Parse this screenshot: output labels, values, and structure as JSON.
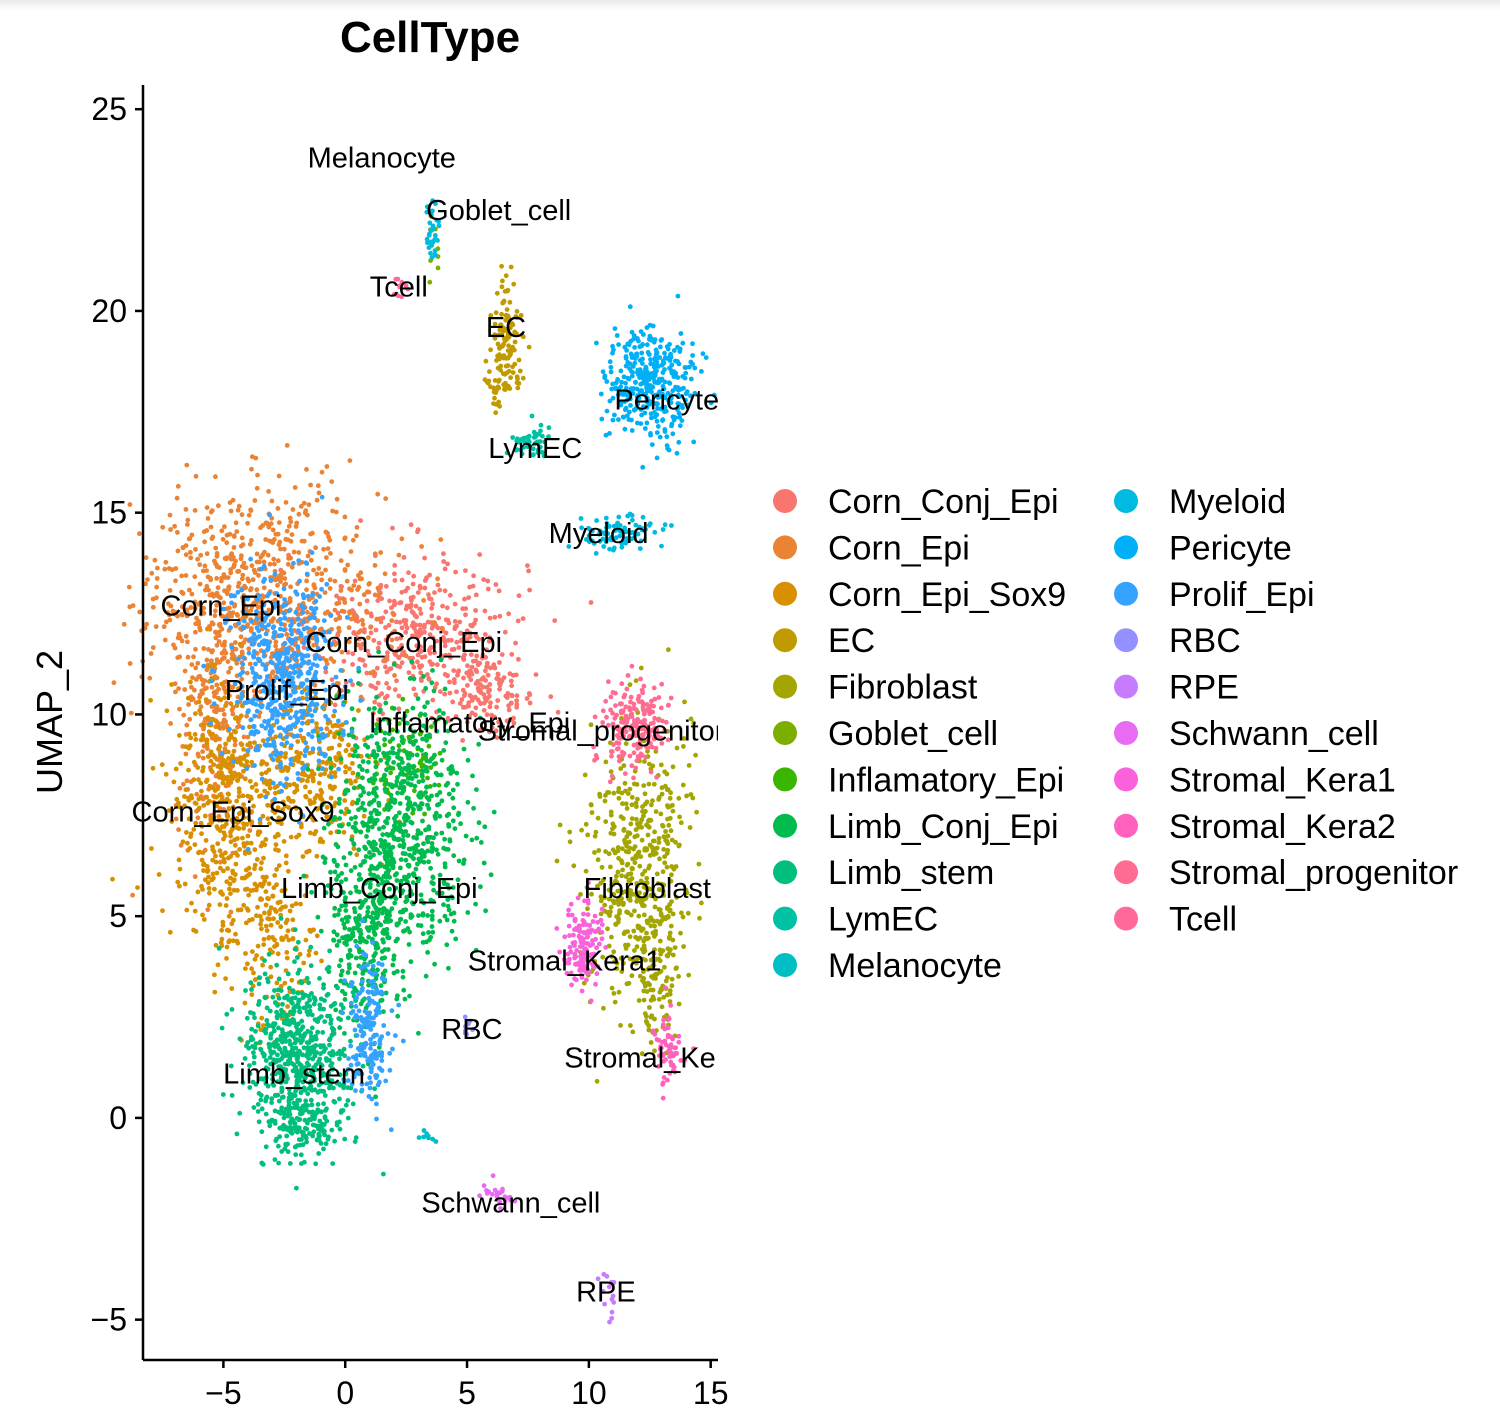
{
  "chart_data": {
    "type": "scatter",
    "title": "CellType",
    "xlabel": "",
    "ylabel": "UMAP_2",
    "xlim": [
      -8.3,
      15.3
    ],
    "ylim": [
      -6.0,
      25.6
    ],
    "x_ticks": [
      -5,
      0,
      5,
      10,
      15
    ],
    "y_ticks": [
      -5,
      0,
      5,
      10,
      15,
      20,
      25
    ],
    "x_tick_labels": [
      "−5",
      "0",
      "5",
      "10",
      "15"
    ],
    "y_tick_labels": [
      "−5",
      "0",
      "5",
      "10",
      "15",
      "20",
      "25"
    ],
    "grid": false,
    "legend_position": "right",
    "legend_columns": 2,
    "series": [
      {
        "name": "Corn_Conj_Epi",
        "color": "#F8766D",
        "clusters": [
          {
            "cx": 3.0,
            "cy": 12.0,
            "sx": 2.2,
            "sy": 1.0,
            "n": 420
          },
          {
            "cx": 5.8,
            "cy": 10.5,
            "sx": 1.0,
            "sy": 0.5,
            "n": 120
          }
        ]
      },
      {
        "name": "Corn_Epi",
        "color": "#EB8335",
        "clusters": [
          {
            "cx": -3.3,
            "cy": 13.0,
            "sx": 2.5,
            "sy": 1.3,
            "n": 700
          },
          {
            "cx": -5.2,
            "cy": 10.0,
            "sx": 0.9,
            "sy": 1.6,
            "n": 260
          }
        ]
      },
      {
        "name": "Corn_Epi_Sox9",
        "color": "#D89000",
        "clusters": [
          {
            "cx": -5.0,
            "cy": 7.5,
            "sx": 1.1,
            "sy": 1.8,
            "n": 420
          },
          {
            "cx": -1.5,
            "cy": 8.5,
            "sx": 1.4,
            "sy": 1.0,
            "n": 300
          },
          {
            "cx": -2.8,
            "cy": 4.5,
            "sx": 0.8,
            "sy": 1.2,
            "n": 160
          }
        ]
      },
      {
        "name": "EC",
        "color": "#C09B00",
        "clusters": [
          {
            "cx": 6.6,
            "cy": 19.4,
            "sx": 0.3,
            "sy": 0.7,
            "n": 110
          },
          {
            "cx": 6.3,
            "cy": 18.2,
            "sx": 0.3,
            "sy": 0.3,
            "n": 30
          }
        ]
      },
      {
        "name": "Fibroblast",
        "color": "#A3A500",
        "clusters": [
          {
            "cx": 12.0,
            "cy": 6.2,
            "sx": 1.0,
            "sy": 1.8,
            "n": 500
          },
          {
            "cx": 12.8,
            "cy": 3.5,
            "sx": 0.4,
            "sy": 0.9,
            "n": 90
          }
        ]
      },
      {
        "name": "Goblet_cell",
        "color": "#7CAE00",
        "clusters": [
          {
            "cx": 3.6,
            "cy": 21.6,
            "sx": 0.15,
            "sy": 0.5,
            "n": 10
          }
        ]
      },
      {
        "name": "Inflamatory_Epi",
        "color": "#39B600",
        "clusters": [
          {
            "cx": 2.5,
            "cy": 9.0,
            "sx": 0.8,
            "sy": 0.6,
            "n": 70
          }
        ]
      },
      {
        "name": "Limb_Conj_Epi",
        "color": "#00BB4E",
        "clusters": [
          {
            "cx": 2.4,
            "cy": 7.4,
            "sx": 1.4,
            "sy": 1.5,
            "n": 700
          },
          {
            "cx": 0.9,
            "cy": 4.6,
            "sx": 0.9,
            "sy": 1.2,
            "n": 300
          }
        ]
      },
      {
        "name": "Limb_stem",
        "color": "#00BF7D",
        "clusters": [
          {
            "cx": -1.9,
            "cy": 1.5,
            "sx": 1.1,
            "sy": 1.1,
            "n": 620
          },
          {
            "cx": -1.8,
            "cy": -0.2,
            "sx": 0.6,
            "sy": 0.4,
            "n": 100
          }
        ]
      },
      {
        "name": "LymEC",
        "color": "#00C1A3",
        "clusters": [
          {
            "cx": 7.6,
            "cy": 16.8,
            "sx": 0.4,
            "sy": 0.2,
            "n": 50
          }
        ]
      },
      {
        "name": "Melanocyte",
        "color": "#00BFC4",
        "clusters": [
          {
            "cx": 3.4,
            "cy": -0.5,
            "sx": 0.2,
            "sy": 0.1,
            "n": 8
          }
        ]
      },
      {
        "name": "Myeloid",
        "color": "#00BAE0",
        "clusters": [
          {
            "cx": 11.3,
            "cy": 14.5,
            "sx": 0.8,
            "sy": 0.2,
            "n": 80
          },
          {
            "cx": 3.6,
            "cy": 22.0,
            "sx": 0.15,
            "sy": 0.45,
            "n": 30
          }
        ]
      },
      {
        "name": "Pericyte",
        "color": "#00B0F6",
        "clusters": [
          {
            "cx": 12.5,
            "cy": 18.2,
            "sx": 0.9,
            "sy": 0.7,
            "n": 380
          }
        ]
      },
      {
        "name": "Prolif_Epi",
        "color": "#35A2FF",
        "clusters": [
          {
            "cx": -2.6,
            "cy": 10.8,
            "sx": 1.1,
            "sy": 1.3,
            "n": 520
          },
          {
            "cx": 1.0,
            "cy": 2.2,
            "sx": 0.5,
            "sy": 0.9,
            "n": 180
          }
        ]
      },
      {
        "name": "RBC",
        "color": "#9590FF",
        "clusters": [
          {
            "cx": 5.0,
            "cy": 2.2,
            "sx": 0.12,
            "sy": 0.15,
            "n": 8
          }
        ]
      },
      {
        "name": "RPE",
        "color": "#C77CFF",
        "clusters": [
          {
            "cx": 10.8,
            "cy": -4.3,
            "sx": 0.2,
            "sy": 0.3,
            "n": 14
          }
        ]
      },
      {
        "name": "Schwann_cell",
        "color": "#E76BF3",
        "clusters": [
          {
            "cx": 6.4,
            "cy": -1.9,
            "sx": 0.35,
            "sy": 0.2,
            "n": 24
          }
        ]
      },
      {
        "name": "Stromal_Kera1",
        "color": "#FA62DB",
        "clusters": [
          {
            "cx": 9.7,
            "cy": 4.2,
            "sx": 0.4,
            "sy": 0.5,
            "n": 140
          }
        ]
      },
      {
        "name": "Stromal_Kera2",
        "color": "#FF62BC",
        "clusters": [
          {
            "cx": 13.2,
            "cy": 1.7,
            "sx": 0.3,
            "sy": 0.5,
            "n": 60
          }
        ]
      },
      {
        "name": "Stromal_progenitor",
        "color": "#FF6C91",
        "clusters": [
          {
            "cx": 11.9,
            "cy": 9.7,
            "sx": 0.7,
            "sy": 0.5,
            "n": 190
          }
        ]
      },
      {
        "name": "Tcell",
        "color": "#FF6A98",
        "clusters": [
          {
            "cx": 2.3,
            "cy": 20.6,
            "sx": 0.15,
            "sy": 0.12,
            "n": 10
          }
        ]
      }
    ],
    "cluster_labels": [
      {
        "text": "Melanocyte",
        "x": 1.5,
        "y": 23.8
      },
      {
        "text": "Goblet_cell",
        "x": 6.3,
        "y": 22.5
      },
      {
        "text": "Tcell",
        "x": 2.2,
        "y": 20.6
      },
      {
        "text": "EC",
        "x": 6.6,
        "y": 19.6
      },
      {
        "text": "Pericyte",
        "x": 13.2,
        "y": 17.8
      },
      {
        "text": "LymEC",
        "x": 7.8,
        "y": 16.6
      },
      {
        "text": "Myeloid",
        "x": 10.4,
        "y": 14.5
      },
      {
        "text": "Corn_Epi",
        "x": -5.1,
        "y": 12.7
      },
      {
        "text": "Corn_Conj_Epi",
        "x": 2.4,
        "y": 11.8
      },
      {
        "text": "Prolif_Epi",
        "x": -2.4,
        "y": 10.6
      },
      {
        "text": "Inflamatory_Epi",
        "x": 5.1,
        "y": 9.8
      },
      {
        "text": "Stromal_progenitor",
        "x": 10.5,
        "y": 9.6
      },
      {
        "text": "Corn_Epi_Sox9",
        "x": -4.6,
        "y": 7.6
      },
      {
        "text": "Limb_Conj_Epi",
        "x": 1.4,
        "y": 5.7
      },
      {
        "text": "Fibroblast",
        "x": 12.4,
        "y": 5.7
      },
      {
        "text": "Stromal_Kera1",
        "x": 9.0,
        "y": 3.9
      },
      {
        "text": "RBC",
        "x": 5.2,
        "y": 2.2
      },
      {
        "text": "Stromal_Ke",
        "x": 12.1,
        "y": 1.5
      },
      {
        "text": "Limb_stem",
        "x": -2.1,
        "y": 1.1
      },
      {
        "text": "Schwann_cell",
        "x": 6.8,
        "y": -2.1
      },
      {
        "text": "RPE",
        "x": 10.7,
        "y": -4.3
      }
    ]
  }
}
